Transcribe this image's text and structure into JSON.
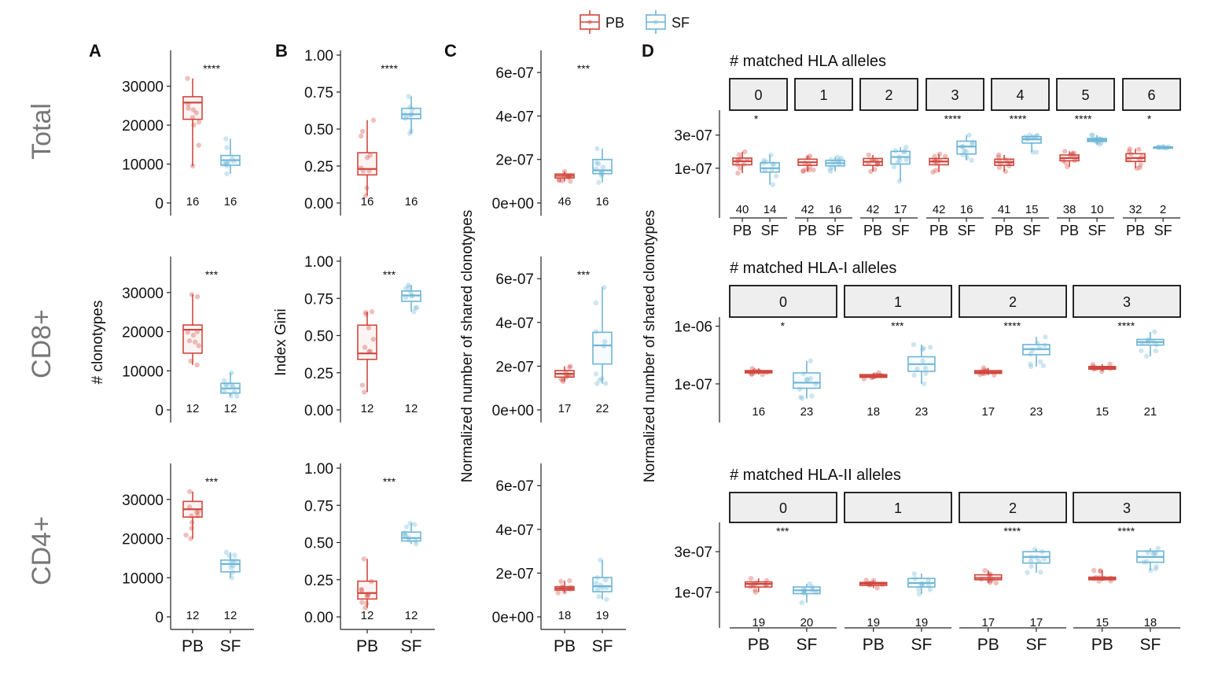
{
  "figure": {
    "legend": [
      {
        "name": "PB",
        "color": "#d0473e"
      },
      {
        "name": "SF",
        "color": "#6fb6d6"
      }
    ],
    "row_labels": [
      "Total",
      "CD8+",
      "CD4+"
    ],
    "panel_letters": [
      "A",
      "B",
      "C",
      "D"
    ],
    "y_titles": {
      "A": "# clonotypes",
      "B": "Index Gini",
      "C": "Normalized number of shared clonotypes",
      "D": "Normalized number of shared clonotypes"
    },
    "x_groups": [
      "PB",
      "SF"
    ],
    "colors": {
      "PB": "#d0473e",
      "SF": "#6fb6d6",
      "axis": "#222222",
      "strip_fill": "#eeeeee"
    }
  },
  "chart_data": [
    {
      "id": "A-Total",
      "type": "boxplot",
      "title": "Total",
      "ylabel": "",
      "categories": [
        "PB",
        "SF"
      ],
      "ylim": [
        0,
        38000
      ],
      "yticks": [
        0,
        10000,
        20000,
        30000
      ],
      "ytick_labels": [
        "0",
        "10000",
        "20000",
        "30000"
      ],
      "series": [
        {
          "name": "PB",
          "n": "16",
          "box": {
            "min": 9500,
            "q1": 21500,
            "median": 25800,
            "q3": 27300,
            "max": 32000
          }
        },
        {
          "name": "SF",
          "n": "16",
          "box": {
            "min": 7500,
            "q1": 9700,
            "median": 11000,
            "q3": 12200,
            "max": 16500
          }
        }
      ],
      "significance": "****"
    },
    {
      "id": "A-CD8",
      "type": "boxplot",
      "title": "CD8+",
      "ylabel": "# clonotypes",
      "categories": [
        "PB",
        "SF"
      ],
      "ylim": [
        0,
        38000
      ],
      "yticks": [
        0,
        10000,
        20000,
        30000
      ],
      "ytick_labels": [
        "0",
        "10000",
        "20000",
        "30000"
      ],
      "series": [
        {
          "name": "PB",
          "n": "12",
          "box": {
            "min": 11500,
            "q1": 14500,
            "median": 20500,
            "q3": 21700,
            "max": 29500
          }
        },
        {
          "name": "SF",
          "n": "12",
          "box": {
            "min": 3500,
            "q1": 4300,
            "median": 5500,
            "q3": 6800,
            "max": 9500
          }
        }
      ],
      "significance": "***"
    },
    {
      "id": "A-CD4",
      "type": "boxplot",
      "title": "CD4+",
      "ylabel": "",
      "categories": [
        "PB",
        "SF"
      ],
      "ylim": [
        0,
        38000
      ],
      "yticks": [
        0,
        10000,
        20000,
        30000
      ],
      "ytick_labels": [
        "0",
        "10000",
        "20000",
        "30000"
      ],
      "series": [
        {
          "name": "PB",
          "n": "12",
          "box": {
            "min": 20000,
            "q1": 25500,
            "median": 27500,
            "q3": 29500,
            "max": 32000
          }
        },
        {
          "name": "SF",
          "n": "12",
          "box": {
            "min": 10000,
            "q1": 11500,
            "median": 13500,
            "q3": 14500,
            "max": 16500
          }
        }
      ],
      "significance": "***"
    },
    {
      "id": "B-Total",
      "type": "boxplot",
      "title": "Total",
      "ylabel": "",
      "categories": [
        "PB",
        "SF"
      ],
      "ylim": [
        0,
        1.0
      ],
      "yticks": [
        0,
        0.25,
        0.5,
        0.75,
        1.0
      ],
      "ytick_labels": [
        "0.00",
        "0.25",
        "0.50",
        "0.75",
        "1.00"
      ],
      "series": [
        {
          "name": "PB",
          "n": "16",
          "box": {
            "min": 0.05,
            "q1": 0.19,
            "median": 0.23,
            "q3": 0.34,
            "max": 0.56
          }
        },
        {
          "name": "SF",
          "n": "16",
          "box": {
            "min": 0.47,
            "q1": 0.57,
            "median": 0.6,
            "q3": 0.64,
            "max": 0.72
          }
        }
      ],
      "significance": "****"
    },
    {
      "id": "B-CD8",
      "type": "boxplot",
      "title": "CD8+",
      "ylabel": "Index Gini",
      "categories": [
        "PB",
        "SF"
      ],
      "ylim": [
        0,
        1.0
      ],
      "yticks": [
        0,
        0.25,
        0.5,
        0.75,
        1.0
      ],
      "ytick_labels": [
        "0.00",
        "0.25",
        "0.50",
        "0.75",
        "1.00"
      ],
      "series": [
        {
          "name": "PB",
          "n": "12",
          "box": {
            "min": 0.12,
            "q1": 0.34,
            "median": 0.38,
            "q3": 0.57,
            "max": 0.66
          }
        },
        {
          "name": "SF",
          "n": "12",
          "box": {
            "min": 0.66,
            "q1": 0.73,
            "median": 0.77,
            "q3": 0.8,
            "max": 0.84
          }
        }
      ],
      "significance": "***"
    },
    {
      "id": "B-CD4",
      "type": "boxplot",
      "title": "CD4+",
      "ylabel": "",
      "categories": [
        "PB",
        "SF"
      ],
      "ylim": [
        0,
        1.0
      ],
      "yticks": [
        0,
        0.25,
        0.5,
        0.75,
        1.0
      ],
      "ytick_labels": [
        "0.00",
        "0.25",
        "0.50",
        "0.75",
        "1.00"
      ],
      "series": [
        {
          "name": "PB",
          "n": "12",
          "box": {
            "min": 0.06,
            "q1": 0.12,
            "median": 0.16,
            "q3": 0.24,
            "max": 0.39
          }
        },
        {
          "name": "SF",
          "n": "12",
          "box": {
            "min": 0.49,
            "q1": 0.51,
            "median": 0.53,
            "q3": 0.57,
            "max": 0.63
          }
        }
      ],
      "significance": "***"
    },
    {
      "id": "C-Total",
      "type": "boxplot",
      "title": "Total",
      "ylabel": "",
      "categories": [
        "PB",
        "SF"
      ],
      "ylim": [
        0,
        6.8e-07
      ],
      "yticks": [
        0,
        2e-07,
        4e-07,
        6e-07
      ],
      "ytick_labels": [
        "0e+00",
        "2e-07",
        "4e-07",
        "6e-07"
      ],
      "series": [
        {
          "name": "PB",
          "n": "46",
          "box": {
            "min": 1e-07,
            "q1": 1.15e-07,
            "median": 1.25e-07,
            "q3": 1.33e-07,
            "max": 1.45e-07
          }
        },
        {
          "name": "SF",
          "n": "16",
          "box": {
            "min": 9.5e-08,
            "q1": 1.35e-07,
            "median": 1.5e-07,
            "q3": 2e-07,
            "max": 2.5e-07
          }
        }
      ],
      "significance": "***"
    },
    {
      "id": "C-CD8",
      "type": "boxplot",
      "title": "CD8+",
      "ylabel": "Normalized number of shared clonotypes",
      "categories": [
        "PB",
        "SF"
      ],
      "ylim": [
        0,
        6.8e-07
      ],
      "yticks": [
        0,
        2e-07,
        4e-07,
        6e-07
      ],
      "ytick_labels": [
        "0e+00",
        "2e-07",
        "4e-07",
        "6e-07"
      ],
      "series": [
        {
          "name": "PB",
          "n": "17",
          "box": {
            "min": 1.3e-07,
            "q1": 1.5e-07,
            "median": 1.65e-07,
            "q3": 1.8e-07,
            "max": 2e-07
          }
        },
        {
          "name": "SF",
          "n": "22",
          "box": {
            "min": 1.2e-07,
            "q1": 2.1e-07,
            "median": 2.95e-07,
            "q3": 3.55e-07,
            "max": 5.6e-07
          }
        }
      ],
      "significance": "***"
    },
    {
      "id": "C-CD4",
      "type": "boxplot",
      "title": "CD4+",
      "ylabel": "",
      "categories": [
        "PB",
        "SF"
      ],
      "ylim": [
        0,
        6.8e-07
      ],
      "yticks": [
        0,
        2e-07,
        4e-07,
        6e-07
      ],
      "ytick_labels": [
        "0e+00",
        "2e-07",
        "4e-07",
        "6e-07"
      ],
      "series": [
        {
          "name": "PB",
          "n": "18",
          "box": {
            "min": 1.1e-07,
            "q1": 1.22e-07,
            "median": 1.3e-07,
            "q3": 1.38e-07,
            "max": 1.65e-07
          }
        },
        {
          "name": "SF",
          "n": "19",
          "box": {
            "min": 8e-08,
            "q1": 1.15e-07,
            "median": 1.4e-07,
            "q3": 1.8e-07,
            "max": 2.6e-07
          }
        }
      ],
      "significance": ""
    },
    {
      "id": "D-HLA",
      "type": "boxplot-facets",
      "title": "# matched HLA alleles",
      "ylabel": "Normalized number of shared clonotypes",
      "log_scale": true,
      "ylim": [
        3e-08,
        6.5e-07
      ],
      "yticks": [
        1e-07,
        3e-07
      ],
      "ytick_labels": [
        "1e-07",
        "3e-07"
      ],
      "facets": [
        {
          "label": "0",
          "sig": "*",
          "PB": {
            "n": "40",
            "box": {
              "min": 8.5e-08,
              "q1": 1.12e-07,
              "median": 1.26e-07,
              "q3": 1.4e-07,
              "max": 1.72e-07
            }
          },
          "SF": {
            "n": "14",
            "box": {
              "min": 5.8e-08,
              "q1": 8.8e-08,
              "median": 1e-07,
              "q3": 1.2e-07,
              "max": 1.55e-07
            }
          }
        },
        {
          "label": "1",
          "sig": "",
          "PB": {
            "n": "42",
            "box": {
              "min": 9e-08,
              "q1": 1.1e-07,
              "median": 1.22e-07,
              "q3": 1.35e-07,
              "max": 1.5e-07
            }
          },
          "SF": {
            "n": "16",
            "box": {
              "min": 9e-08,
              "q1": 1.08e-07,
              "median": 1.18e-07,
              "q3": 1.3e-07,
              "max": 1.45e-07
            }
          }
        },
        {
          "label": "2",
          "sig": "",
          "PB": {
            "n": "42",
            "box": {
              "min": 9e-08,
              "q1": 1.1e-07,
              "median": 1.24e-07,
              "q3": 1.38e-07,
              "max": 1.55e-07
            }
          },
          "SF": {
            "n": "17",
            "box": {
              "min": 6.5e-08,
              "q1": 1.15e-07,
              "median": 1.45e-07,
              "q3": 1.75e-07,
              "max": 2e-07
            }
          }
        },
        {
          "label": "3",
          "sig": "****",
          "PB": {
            "n": "42",
            "box": {
              "min": 8.8e-08,
              "q1": 1.12e-07,
              "median": 1.25e-07,
              "q3": 1.38e-07,
              "max": 1.6e-07
            }
          },
          "SF": {
            "n": "16",
            "box": {
              "min": 1.3e-07,
              "q1": 1.6e-07,
              "median": 2.05e-07,
              "q3": 2.45e-07,
              "max": 3e-07
            }
          }
        },
        {
          "label": "4",
          "sig": "****",
          "PB": {
            "n": "41",
            "box": {
              "min": 9e-08,
              "q1": 1.1e-07,
              "median": 1.22e-07,
              "q3": 1.35e-07,
              "max": 1.55e-07
            }
          },
          "SF": {
            "n": "15",
            "box": {
              "min": 1.7e-07,
              "q1": 2.3e-07,
              "median": 2.6e-07,
              "q3": 2.85e-07,
              "max": 3e-07
            }
          }
        },
        {
          "label": "5",
          "sig": "****",
          "PB": {
            "n": "38",
            "box": {
              "min": 1.05e-07,
              "q1": 1.28e-07,
              "median": 1.4e-07,
              "q3": 1.55e-07,
              "max": 1.75e-07
            }
          },
          "SF": {
            "n": "10",
            "box": {
              "min": 2.2e-07,
              "q1": 2.42e-07,
              "median": 2.55e-07,
              "q3": 2.68e-07,
              "max": 3e-07
            }
          }
        },
        {
          "label": "6",
          "sig": "*",
          "PB": {
            "n": "32",
            "box": {
              "min": 1e-07,
              "q1": 1.25e-07,
              "median": 1.4e-07,
              "q3": 1.62e-07,
              "max": 1.9e-07
            }
          },
          "SF": {
            "n": "2",
            "box": {
              "min": 1.95e-07,
              "q1": 1.97e-07,
              "median": 2e-07,
              "q3": 2.02e-07,
              "max": 2.04e-07
            }
          }
        }
      ],
      "x_labels": [
        "PB",
        "SF"
      ]
    },
    {
      "id": "D-HLAI",
      "type": "boxplot-facets",
      "title": "# matched HLA-I alleles",
      "ylabel": "",
      "log_scale": true,
      "ylim": [
        5e-08,
        1.35e-06
      ],
      "yticks": [
        1e-07,
        1e-06
      ],
      "ytick_labels": [
        "1e-07",
        "1e-06"
      ],
      "facets": [
        {
          "label": "0",
          "sig": "*",
          "PB": {
            "n": "16",
            "box": {
              "min": 1.45e-07,
              "q1": 1.55e-07,
              "median": 1.62e-07,
              "q3": 1.7e-07,
              "max": 1.85e-07
            }
          },
          "SF": {
            "n": "23",
            "box": {
              "min": 5.6e-08,
              "q1": 8.4e-08,
              "median": 1.05e-07,
              "q3": 1.55e-07,
              "max": 2.5e-07
            }
          }
        },
        {
          "label": "1",
          "sig": "***",
          "PB": {
            "n": "18",
            "box": {
              "min": 1.22e-07,
              "q1": 1.3e-07,
              "median": 1.37e-07,
              "q3": 1.45e-07,
              "max": 1.55e-07
            }
          },
          "SF": {
            "n": "23",
            "box": {
              "min": 1e-07,
              "q1": 1.65e-07,
              "median": 2.2e-07,
              "q3": 2.95e-07,
              "max": 4.8e-07
            }
          }
        },
        {
          "label": "2",
          "sig": "****",
          "PB": {
            "n": "17",
            "box": {
              "min": 1.42e-07,
              "q1": 1.52e-07,
              "median": 1.6e-07,
              "q3": 1.7e-07,
              "max": 1.9e-07
            }
          },
          "SF": {
            "n": "23",
            "box": {
              "min": 2e-07,
              "q1": 3.2e-07,
              "median": 4e-07,
              "q3": 4.8e-07,
              "max": 6.5e-07
            }
          }
        },
        {
          "label": "3",
          "sig": "****",
          "PB": {
            "n": "15",
            "box": {
              "min": 1.65e-07,
              "q1": 1.8e-07,
              "median": 1.9e-07,
              "q3": 2e-07,
              "max": 2.2e-07
            }
          },
          "SF": {
            "n": "21",
            "box": {
              "min": 3e-07,
              "q1": 4.7e-07,
              "median": 5.3e-07,
              "q3": 5.9e-07,
              "max": 8e-07
            }
          }
        }
      ],
      "x_labels": [
        "PB",
        "SF"
      ]
    },
    {
      "id": "D-HLAII",
      "type": "boxplot-facets",
      "title": "# matched HLA-II alleles",
      "ylabel": "",
      "log_scale": true,
      "ylim": [
        5e-08,
        6.5e-07
      ],
      "yticks": [
        1e-07,
        3e-07
      ],
      "ytick_labels": [
        "1e-07",
        "3e-07"
      ],
      "facets": [
        {
          "label": "0",
          "sig": "***",
          "PB": {
            "n": "19",
            "box": {
              "min": 1e-07,
              "q1": 1.15e-07,
              "median": 1.25e-07,
              "q3": 1.32e-07,
              "max": 1.45e-07
            }
          },
          "SF": {
            "n": "20",
            "box": {
              "min": 7.5e-08,
              "q1": 9.6e-08,
              "median": 1.05e-07,
              "q3": 1.15e-07,
              "max": 1.25e-07
            }
          }
        },
        {
          "label": "1",
          "sig": "",
          "PB": {
            "n": "19",
            "box": {
              "min": 1.12e-07,
              "q1": 1.2e-07,
              "median": 1.26e-07,
              "q3": 1.3e-07,
              "max": 1.38e-07
            }
          },
          "SF": {
            "n": "19",
            "box": {
              "min": 9.5e-08,
              "q1": 1.15e-07,
              "median": 1.28e-07,
              "q3": 1.45e-07,
              "max": 1.65e-07
            }
          }
        },
        {
          "label": "2",
          "sig": "****",
          "PB": {
            "n": "17",
            "box": {
              "min": 1.28e-07,
              "q1": 1.4e-07,
              "median": 1.47e-07,
              "q3": 1.6e-07,
              "max": 1.8e-07
            }
          },
          "SF": {
            "n": "17",
            "box": {
              "min": 1.7e-07,
              "q1": 2.2e-07,
              "median": 2.6e-07,
              "q3": 3e-07,
              "max": 3.2e-07
            }
          }
        },
        {
          "label": "3",
          "sig": "****",
          "PB": {
            "n": "15",
            "box": {
              "min": 1.35e-07,
              "q1": 1.4e-07,
              "median": 1.44e-07,
              "q3": 1.5e-07,
              "max": 1.8e-07
            }
          },
          "SF": {
            "n": "18",
            "box": {
              "min": 1.8e-07,
              "q1": 2.25e-07,
              "median": 2.6e-07,
              "q3": 3.05e-07,
              "max": 3.3e-07
            }
          }
        }
      ],
      "x_labels": [
        "PB",
        "SF"
      ]
    }
  ]
}
